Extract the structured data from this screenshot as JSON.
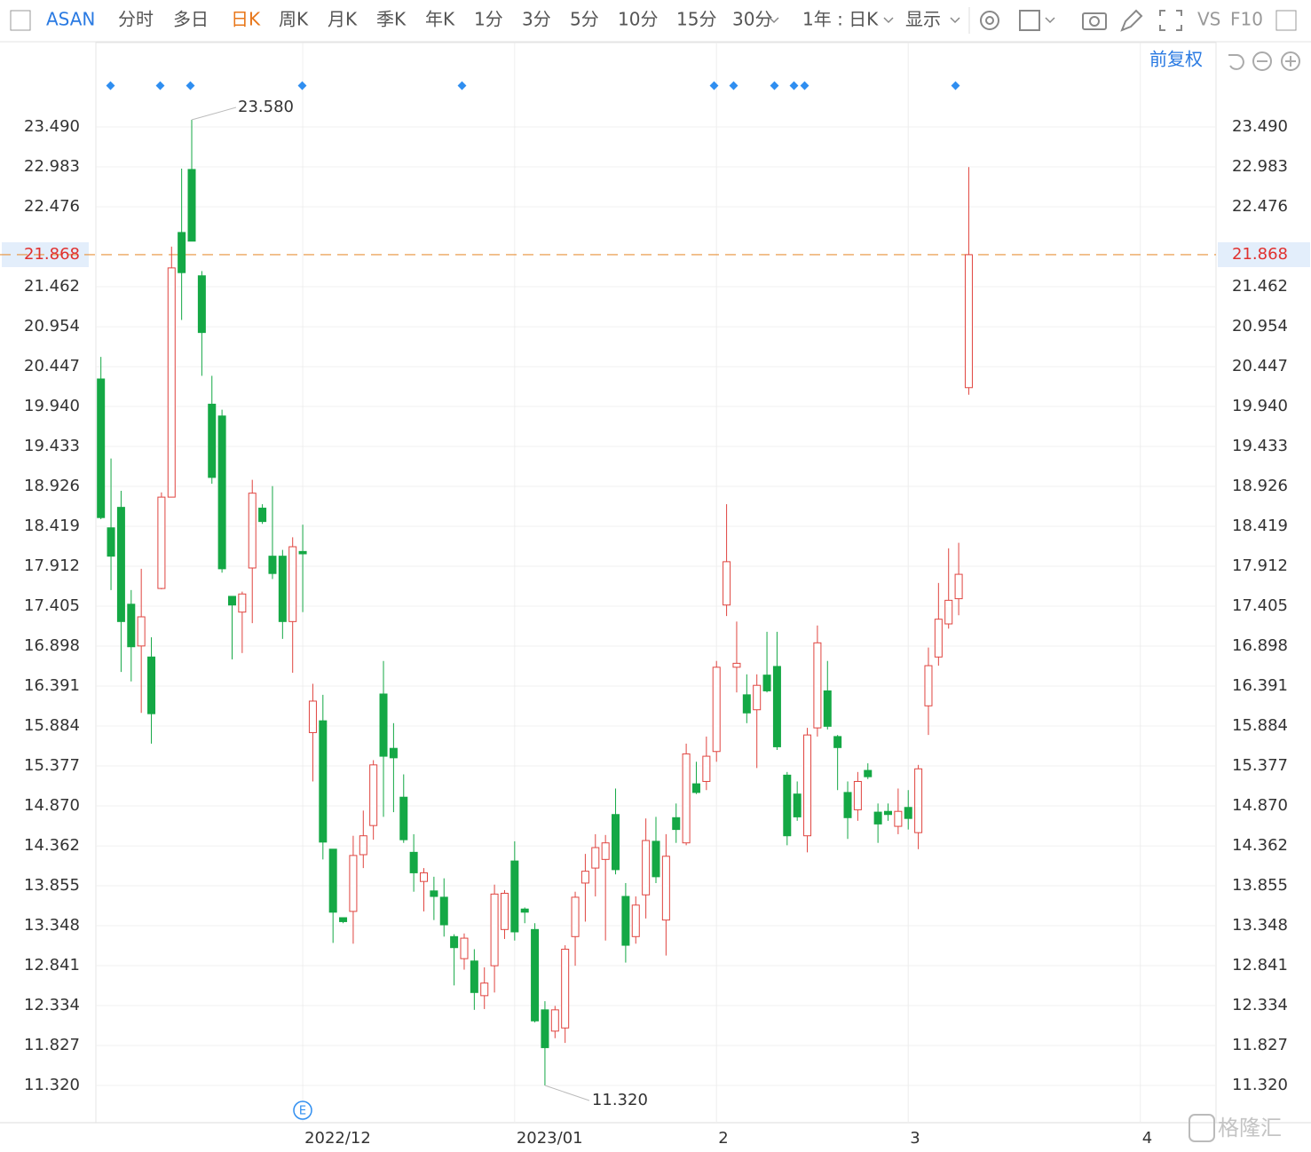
{
  "toolbar": {
    "symbol": "ASAN",
    "periods": [
      "分时",
      "多日",
      "日K",
      "周K",
      "月K",
      "季K",
      "年K",
      "1分",
      "3分",
      "5分",
      "10分",
      "15分",
      "30分"
    ],
    "range": "1年 : 日K",
    "display": "显示",
    "vs": "VS",
    "f10": "F10",
    "adjust": "前复权"
  },
  "watermark": "格隆汇",
  "chart_data": {
    "type": "candlestick",
    "up_color": "#e0443f",
    "down_color": "#14a845",
    "categories": [
      null,
      null,
      null,
      null,
      null,
      null,
      null,
      null,
      null,
      null,
      null,
      null,
      null,
      null,
      null,
      null,
      null,
      null,
      null,
      null,
      "2022/12",
      null,
      null,
      null,
      null,
      null,
      null,
      null,
      null,
      null,
      null,
      null,
      null,
      null,
      null,
      null,
      null,
      null,
      null,
      null,
      null,
      "2023/01",
      null,
      null,
      null,
      null,
      null,
      null,
      null,
      null,
      null,
      null,
      null,
      null,
      null,
      null,
      null,
      null,
      null,
      null,
      null,
      "2",
      null,
      null,
      null,
      null,
      null,
      null,
      null,
      null,
      null,
      null,
      null,
      null,
      null,
      null,
      null,
      null,
      null,
      null,
      "3",
      null,
      null,
      null,
      null,
      null,
      null,
      null,
      null,
      null,
      null,
      null,
      null,
      null,
      null,
      null,
      null,
      null,
      null,
      null,
      null,
      null,
      null,
      "4",
      null,
      null,
      null,
      null,
      null,
      null,
      null
    ],
    "open": [
      20.29,
      18.4,
      18.66,
      17.43,
      16.9,
      16.76,
      17.63,
      18.79,
      22.15,
      22.95,
      21.6,
      19.97,
      19.82,
      17.53,
      17.33,
      17.89,
      18.65,
      18.04,
      18.04,
      17.21,
      18.1,
      15.8,
      15.95,
      14.32,
      13.45,
      13.53,
      14.25,
      14.62,
      16.29,
      15.6,
      14.98,
      14.28,
      13.91,
      13.79,
      13.71,
      13.21,
      12.93,
      12.9,
      12.46,
      12.84,
      13.3,
      14.17,
      13.56,
      13.3,
      12.28,
      12.01,
      12.05,
      13.21,
      13.89,
      14.08,
      14.19,
      14.76,
      13.72,
      13.21,
      13.74,
      14.42,
      13.42,
      14.72,
      14.4,
      15.15,
      15.18,
      15.56,
      17.42,
      16.63,
      16.28,
      16.09,
      16.53,
      16.64,
      15.26,
      15.02,
      14.49,
      15.86,
      16.33,
      15.75,
      15.04,
      14.82,
      15.32,
      14.79,
      14.8,
      14.61,
      14.85,
      14.53,
      16.14,
      16.76,
      17.18,
      17.5,
      20.18,
      null,
      null,
      null,
      null,
      null,
      null,
      null,
      null,
      null,
      null,
      null,
      null,
      null,
      null,
      null,
      null,
      null,
      null,
      null,
      null,
      null,
      null,
      null,
      null
    ],
    "high": [
      20.57,
      19.28,
      18.87,
      17.61,
      17.88,
      17.01,
      18.85,
      21.97,
      22.96,
      23.58,
      21.66,
      20.33,
      19.9,
      17.53,
      17.59,
      19.01,
      18.7,
      18.93,
      18.12,
      18.28,
      18.44,
      16.42,
      16.28,
      14.32,
      13.45,
      14.49,
      14.81,
      15.45,
      16.71,
      15.92,
      15.27,
      14.51,
      14.08,
      13.97,
      13.95,
      13.24,
      13.25,
      13.05,
      12.82,
      13.87,
      13.8,
      14.42,
      13.58,
      13.38,
      12.39,
      12.33,
      13.1,
      13.78,
      14.26,
      14.51,
      14.5,
      15.09,
      13.89,
      13.72,
      14.71,
      14.73,
      14.51,
      14.9,
      15.66,
      15.43,
      15.75,
      16.71,
      18.7,
      17.21,
      16.54,
      16.54,
      17.08,
      17.08,
      15.3,
      15.18,
      15.86,
      17.16,
      16.71,
      15.77,
      15.18,
      15.3,
      15.41,
      14.9,
      14.9,
      15.09,
      15.07,
      15.39,
      16.88,
      17.7,
      18.14,
      18.21,
      22.98,
      null,
      null,
      null,
      null,
      null,
      null,
      null,
      null,
      null,
      null,
      null,
      null,
      null,
      null,
      null,
      null,
      null,
      null,
      null,
      null,
      null,
      null,
      null,
      null
    ],
    "low": [
      18.51,
      17.61,
      16.57,
      16.45,
      16.05,
      15.66,
      17.62,
      18.79,
      21.04,
      22.04,
      20.33,
      18.96,
      17.83,
      16.73,
      16.81,
      17.19,
      18.45,
      17.75,
      16.99,
      16.56,
      17.33,
      15.18,
      14.19,
      13.13,
      13.38,
      13.12,
      14.08,
      14.44,
      14.73,
      14.79,
      14.4,
      13.78,
      13.53,
      13.42,
      13.21,
      12.59,
      12.79,
      12.28,
      12.29,
      12.5,
      13.18,
      13.16,
      13.38,
      12.12,
      11.32,
      11.92,
      11.86,
      12.84,
      13.4,
      13.72,
      13.16,
      14.0,
      12.88,
      13.12,
      13.44,
      13.89,
      12.97,
      14.4,
      14.37,
      15.02,
      15.07,
      15.43,
      17.28,
      16.31,
      15.92,
      15.35,
      16.31,
      15.58,
      14.37,
      14.68,
      14.28,
      15.75,
      15.84,
      15.07,
      14.45,
      14.68,
      15.21,
      14.4,
      14.68,
      14.51,
      14.57,
      14.32,
      15.77,
      16.65,
      17.12,
      17.29,
      20.09,
      null,
      null,
      null,
      null,
      null,
      null,
      null,
      null,
      null,
      null,
      null,
      null,
      null,
      null,
      null,
      null,
      null,
      null,
      null,
      null,
      null,
      null,
      null,
      null
    ],
    "close": [
      18.53,
      18.04,
      17.21,
      16.89,
      17.27,
      16.04,
      18.79,
      21.7,
      21.64,
      22.04,
      20.88,
      19.04,
      17.88,
      17.42,
      17.56,
      18.84,
      18.48,
      17.82,
      17.21,
      18.16,
      18.07,
      16.2,
      14.41,
      13.52,
      13.4,
      14.24,
      14.49,
      15.39,
      15.5,
      15.48,
      14.44,
      14.02,
      14.02,
      13.72,
      13.36,
      13.07,
      13.19,
      12.5,
      12.62,
      13.75,
      13.76,
      13.27,
      13.52,
      12.14,
      11.8,
      12.28,
      13.05,
      13.71,
      14.04,
      14.34,
      14.4,
      14.06,
      13.1,
      13.61,
      14.43,
      13.97,
      14.23,
      14.57,
      15.53,
      15.04,
      15.5,
      16.63,
      17.97,
      16.68,
      16.05,
      16.4,
      16.33,
      15.62,
      14.49,
      14.73,
      15.77,
      16.94,
      15.88,
      15.61,
      14.72,
      15.18,
      15.24,
      14.64,
      14.76,
      14.8,
      14.71,
      15.34,
      16.65,
      17.24,
      17.48,
      17.81,
      21.868,
      null,
      null,
      null,
      null,
      null,
      null,
      null,
      null,
      null,
      null,
      null,
      null,
      null,
      null,
      null,
      null,
      null,
      null,
      null,
      null,
      null,
      null,
      null,
      null
    ],
    "ylim": [
      10.847,
      24.11
    ],
    "yticks": [
      {
        "value": 23.49,
        "label": "23.490"
      },
      22.983,
      22.476,
      21.462,
      20.954,
      20.447,
      {
        "value": 19.94,
        "label": "19.940"
      },
      19.433,
      18.926,
      18.419,
      17.912,
      17.405,
      16.898,
      16.391,
      15.884,
      15.377,
      {
        "value": 14.87,
        "label": "14.870"
      },
      14.362,
      13.855,
      13.348,
      12.841,
      12.334,
      11.827,
      {
        "value": 11.32,
        "label": "11.320"
      }
    ],
    "last_price": 21.868,
    "max_label": "23.580",
    "min_label": "11.320",
    "event_marker": "E",
    "grid": true
  }
}
